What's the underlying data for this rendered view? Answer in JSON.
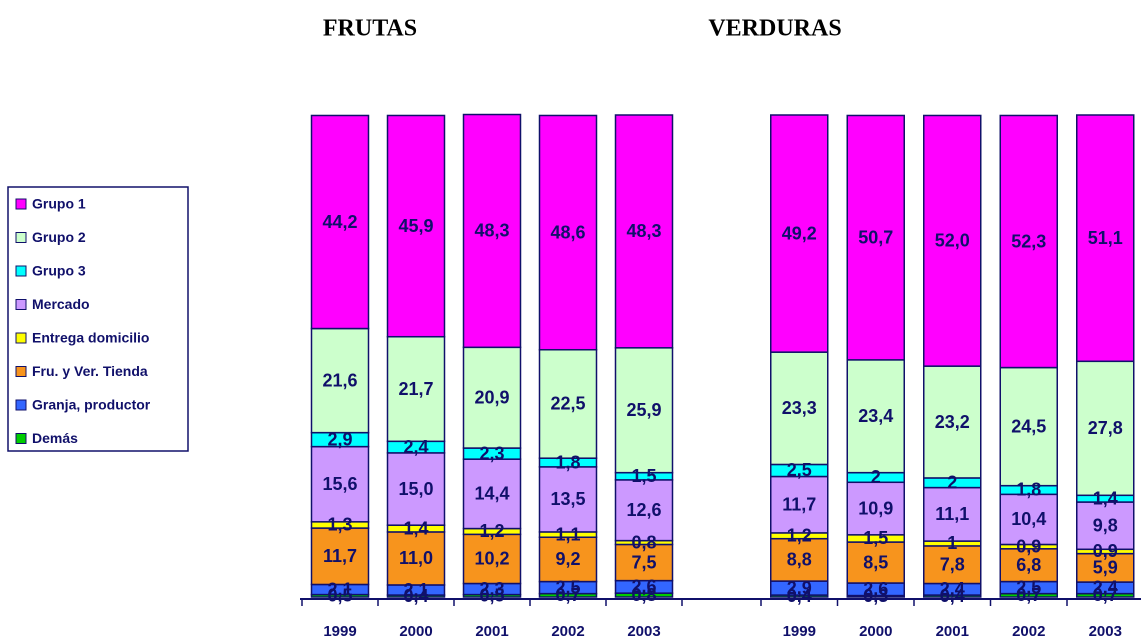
{
  "chart_data": [
    {
      "type": "stacked_bar",
      "title": "FRUTAS",
      "categories": [
        "1999",
        "2000",
        "2001",
        "2002",
        "2003"
      ],
      "ylim": [
        0,
        100
      ],
      "series": [
        {
          "name": "Demás",
          "color": "#00cc00",
          "values": [
            0.5,
            0.4,
            0.5,
            0.7,
            0.8
          ],
          "value_labels": [
            "0,5",
            "0,4",
            "0,5",
            "0,7",
            "0,8"
          ]
        },
        {
          "name": "Granja, productor",
          "color": "#3366ff",
          "values": [
            2.1,
            2.1,
            2.3,
            2.5,
            2.6
          ],
          "value_labels": [
            "2,1",
            "2,1",
            "2,3",
            "2,5",
            "2,6"
          ]
        },
        {
          "name": "Fru. y Ver. Tienda",
          "color": "#f7941d",
          "values": [
            11.7,
            11.0,
            10.2,
            9.2,
            7.5
          ],
          "value_labels": [
            "11,7",
            "11,0",
            "10,2",
            "9,2",
            "7,5"
          ]
        },
        {
          "name": "Entrega domicilio",
          "color": "#ffff00",
          "values": [
            1.3,
            1.4,
            1.2,
            1.1,
            0.8
          ],
          "value_labels": [
            "1,3",
            "1,4",
            "1,2",
            "1,1",
            "0,8"
          ]
        },
        {
          "name": "Mercado",
          "color": "#cc99ff",
          "values": [
            15.6,
            15.0,
            14.4,
            13.5,
            12.6
          ],
          "value_labels": [
            "15,6",
            "15,0",
            "14,4",
            "13,5",
            "12,6"
          ]
        },
        {
          "name": "Grupo 3",
          "color": "#00ffff",
          "values": [
            2.9,
            2.4,
            2.3,
            1.8,
            1.5
          ],
          "value_labels": [
            "2,9",
            "2,4",
            "2,3",
            "1,8",
            "1,5"
          ]
        },
        {
          "name": "Grupo 2",
          "color": "#ccffcc",
          "values": [
            21.6,
            21.7,
            20.9,
            22.5,
            25.9
          ],
          "value_labels": [
            "21,6",
            "21,7",
            "20,9",
            "22,5",
            "25,9"
          ]
        },
        {
          "name": "Grupo 1",
          "color": "#ff00ff",
          "values": [
            44.2,
            45.9,
            48.3,
            48.6,
            48.3
          ],
          "value_labels": [
            "44,2",
            "45,9",
            "48,3",
            "48,6",
            "48,3"
          ]
        }
      ]
    },
    {
      "type": "stacked_bar",
      "title": "VERDURAS",
      "categories": [
        "1999",
        "2000",
        "2001",
        "2002",
        "2003"
      ],
      "ylim": [
        0,
        100
      ],
      "series": [
        {
          "color": "#00cc00",
          "values": [
            0.4,
            0.3,
            0.4,
            0.7,
            0.7
          ],
          "value_labels": [
            "0,4",
            "0,3",
            "0,4",
            "0,7",
            "0,7"
          ]
        },
        {
          "color": "#3366ff",
          "values": [
            2.9,
            2.6,
            2.4,
            2.5,
            2.4
          ],
          "value_labels": [
            "2,9",
            "2,6",
            "2,4",
            "2,5",
            "2,4"
          ]
        },
        {
          "color": "#f7941d",
          "values": [
            8.8,
            8.5,
            7.8,
            6.8,
            5.9
          ],
          "value_labels": [
            "8,8",
            "8,5",
            "7,8",
            "6,8",
            "5,9"
          ]
        },
        {
          "color": "#ffff00",
          "values": [
            1.2,
            1.5,
            1,
            0.9,
            0.9
          ],
          "value_labels": [
            "1,2",
            "1,5",
            "1",
            "0,9",
            "0,9"
          ]
        },
        {
          "color": "#cc99ff",
          "values": [
            11.7,
            10.9,
            11.1,
            10.4,
            9.8
          ],
          "value_labels": [
            "11,7",
            "10,9",
            "11,1",
            "10,4",
            "9,8"
          ]
        },
        {
          "color": "#00ffff",
          "values": [
            2.5,
            2,
            2,
            1.8,
            1.4
          ],
          "value_labels": [
            "2,5",
            "2",
            "2",
            "1,8",
            "1,4"
          ]
        },
        {
          "color": "#ccffcc",
          "values": [
            23.3,
            23.4,
            23.2,
            24.5,
            27.8
          ],
          "value_labels": [
            "23,3",
            "23,4",
            "23,2",
            "24,5",
            "27,8"
          ]
        },
        {
          "color": "#ff00ff",
          "values": [
            49.2,
            50.7,
            52.0,
            52.3,
            51.1
          ],
          "value_labels": [
            "49,2",
            "50,7",
            "52,0",
            "52,3",
            "51,1"
          ]
        }
      ]
    }
  ]
}
